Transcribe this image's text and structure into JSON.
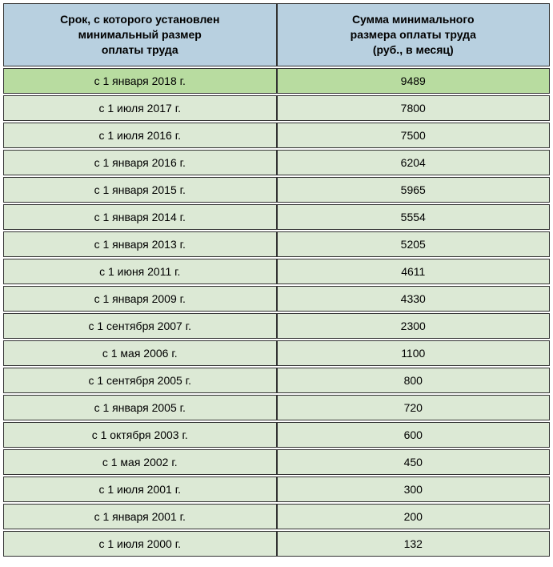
{
  "table": {
    "header_bg": "#b8d0e0",
    "row_bg": "#dce9d5",
    "highlight_bg": "#b8dca0",
    "border_color": "#333333",
    "text_color": "#000000",
    "font_size": 14,
    "columns": [
      "Срок, с которого установлен минимальный размер оплаты труда",
      "Сумма минимального размера оплаты труда (руб., в месяц)"
    ],
    "rows": [
      {
        "date": "с 1 января 2018 г.",
        "value": "9489",
        "highlighted": true
      },
      {
        "date": "с 1 июля 2017 г.",
        "value": "7800",
        "highlighted": false
      },
      {
        "date": "с 1 июля 2016 г.",
        "value": "7500",
        "highlighted": false
      },
      {
        "date": "с 1 января 2016 г.",
        "value": "6204",
        "highlighted": false
      },
      {
        "date": "с 1 января 2015 г.",
        "value": "5965",
        "highlighted": false
      },
      {
        "date": "с 1 января 2014 г.",
        "value": "5554",
        "highlighted": false
      },
      {
        "date": "с 1 января 2013 г.",
        "value": "5205",
        "highlighted": false
      },
      {
        "date": "с 1 июня 2011 г.",
        "value": "4611",
        "highlighted": false
      },
      {
        "date": "с 1 января 2009 г.",
        "value": "4330",
        "highlighted": false
      },
      {
        "date": "с 1 сентября 2007 г.",
        "value": "2300",
        "highlighted": false
      },
      {
        "date": "с 1 мая 2006 г.",
        "value": "1100",
        "highlighted": false
      },
      {
        "date": "с 1 сентября 2005 г.",
        "value": "800",
        "highlighted": false
      },
      {
        "date": "с 1 января 2005 г.",
        "value": "720",
        "highlighted": false
      },
      {
        "date": "с 1 октября 2003 г.",
        "value": "600",
        "highlighted": false
      },
      {
        "date": "с 1 мая 2002 г.",
        "value": "450",
        "highlighted": false
      },
      {
        "date": "с 1 июля 2001 г.",
        "value": "300",
        "highlighted": false
      },
      {
        "date": "с 1 января 2001 г.",
        "value": "200",
        "highlighted": false
      },
      {
        "date": "с 1 июля 2000 г.",
        "value": "132",
        "highlighted": false
      }
    ]
  }
}
